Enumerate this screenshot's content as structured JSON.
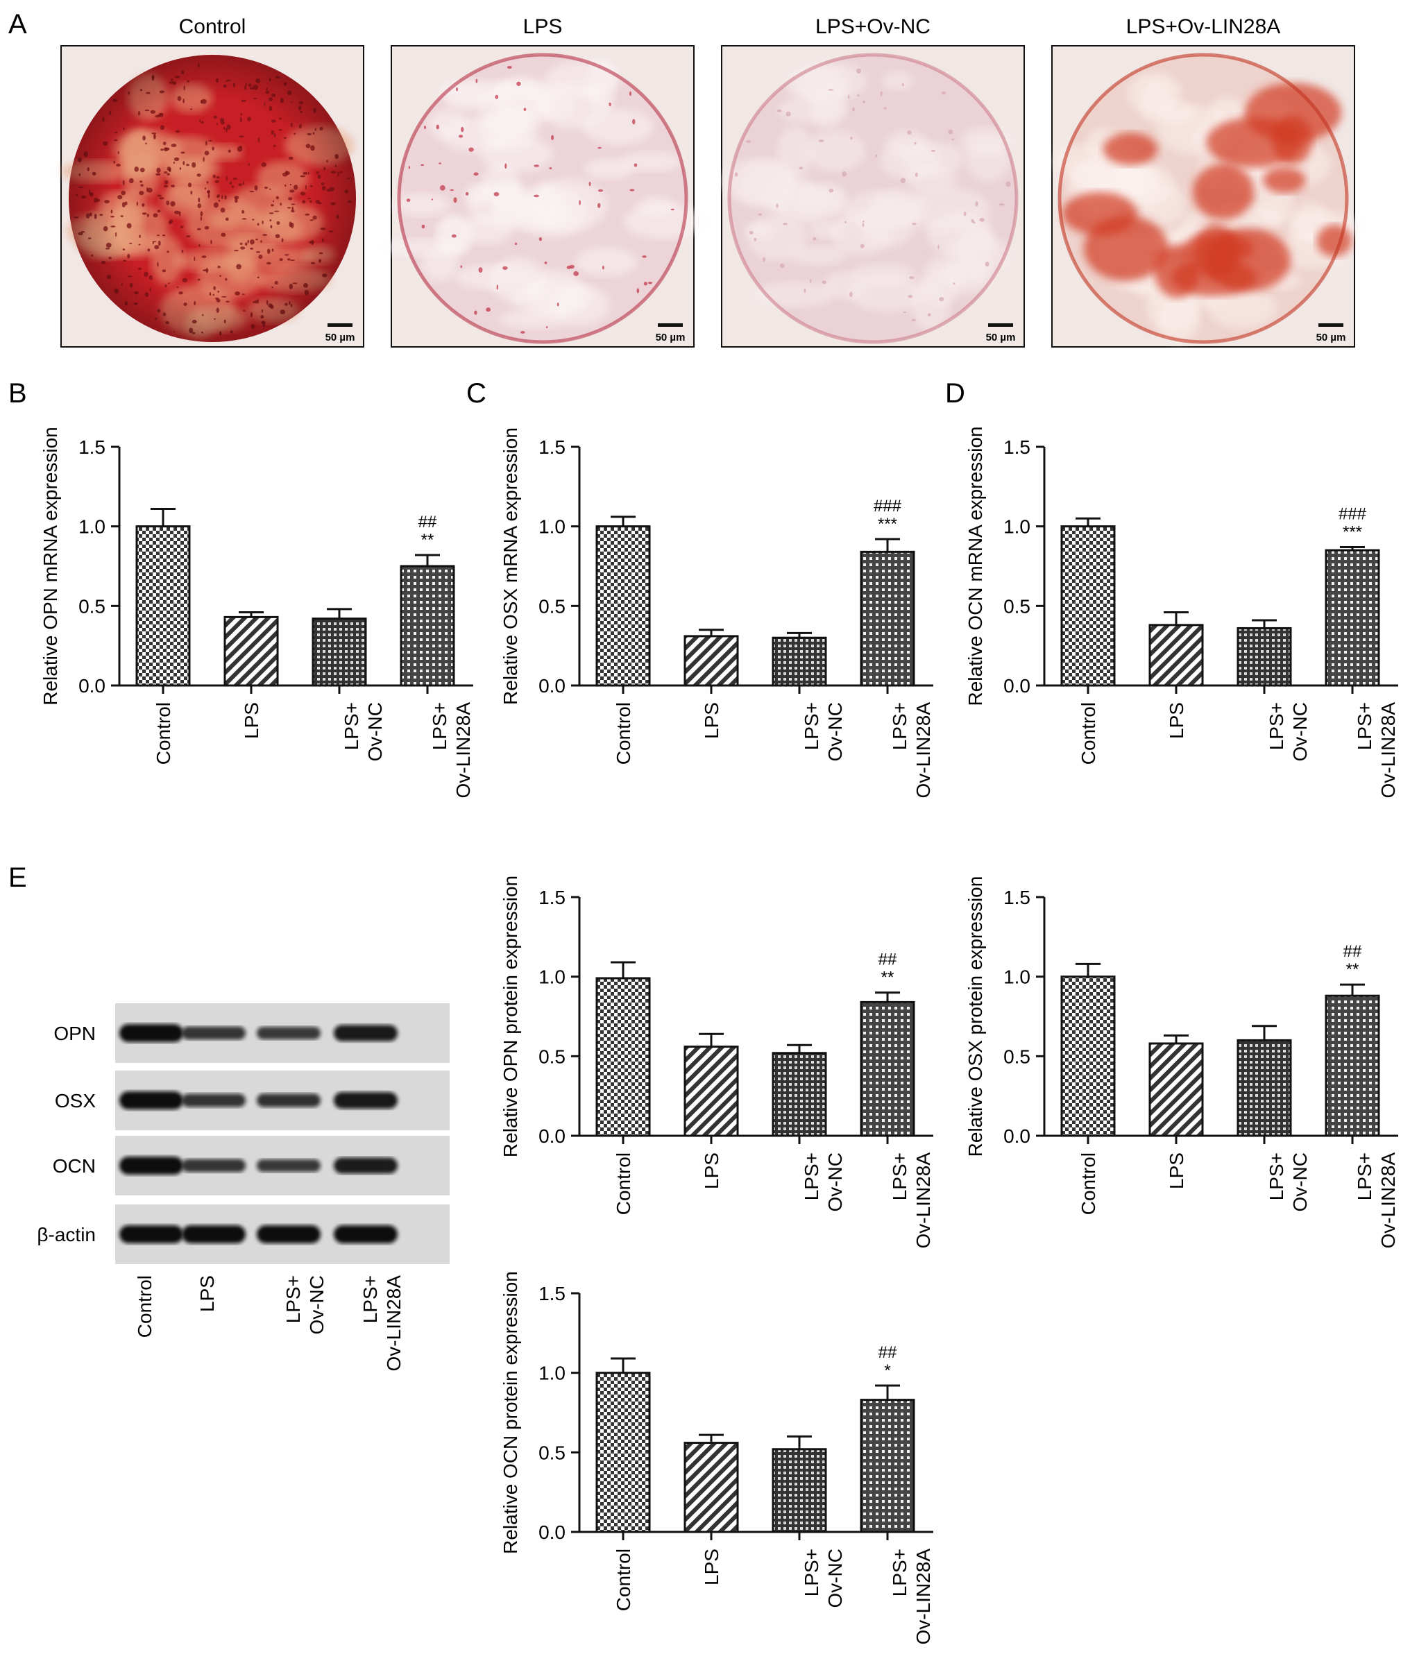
{
  "panel_letters": [
    "A",
    "B",
    "C",
    "D",
    "E"
  ],
  "staining": {
    "images": [
      {
        "title": "Control",
        "scale": "50 µm",
        "palette": [
          "#c71f25",
          "#e8a07c",
          "#7a1114"
        ]
      },
      {
        "title": "LPS",
        "scale": "50 µm",
        "palette": [
          "#ecd4d8",
          "#fbf4f4",
          "#c23a4c"
        ]
      },
      {
        "title": "LPS+Ov-NC",
        "scale": "50 µm",
        "palette": [
          "#ead2d6",
          "#f8eeee",
          "#d7aab3"
        ]
      },
      {
        "title": "LPS+Ov-LIN28A",
        "scale": "50 µm",
        "palette": [
          "#eed2cc",
          "#fbf1ee",
          "#d23a22"
        ]
      }
    ]
  },
  "western_blot": {
    "bands": [
      "OPN",
      "OSX",
      "OCN",
      "β-actin"
    ],
    "lanes": [
      "Control",
      "LPS",
      "LPS+\nOv-NC",
      "LPS+\nOv-LIN28A"
    ],
    "intensity": [
      [
        1.0,
        0.56,
        0.52,
        0.85
      ],
      [
        1.0,
        0.58,
        0.6,
        0.88
      ],
      [
        1.0,
        0.56,
        0.52,
        0.83
      ],
      [
        1.0,
        1.0,
        1.0,
        1.0
      ]
    ]
  },
  "chart_data": [
    {
      "id": "B",
      "type": "bar",
      "ylabel": "Relative OPN mRNA expression",
      "ylim": [
        0,
        1.5
      ],
      "yticks": [
        "0.0",
        "0.5",
        "1.0",
        "1.5"
      ],
      "categories": [
        "Control",
        "LPS",
        "LPS+\nOv-NC",
        "LPS+\nOv-LIN28A"
      ],
      "values": [
        1.0,
        0.43,
        0.42,
        0.75
      ],
      "errors": [
        0.11,
        0.03,
        0.06,
        0.07
      ],
      "annotations": [
        "",
        "",
        "",
        "##\n**"
      ],
      "patterns": [
        "check",
        "diag",
        "grid",
        "dots"
      ]
    },
    {
      "id": "C",
      "type": "bar",
      "ylabel": "Relative OSX mRNA expression",
      "ylim": [
        0,
        1.5
      ],
      "yticks": [
        "0.0",
        "0.5",
        "1.0",
        "1.5"
      ],
      "categories": [
        "Control",
        "LPS",
        "LPS+\nOv-NC",
        "LPS+\nOv-LIN28A"
      ],
      "values": [
        1.0,
        0.31,
        0.3,
        0.84
      ],
      "errors": [
        0.06,
        0.04,
        0.03,
        0.08
      ],
      "annotations": [
        "",
        "",
        "",
        "###\n***"
      ],
      "patterns": [
        "check",
        "diag",
        "grid",
        "dots"
      ]
    },
    {
      "id": "D",
      "type": "bar",
      "ylabel": "Relative OCN mRNA expression",
      "ylim": [
        0,
        1.5
      ],
      "yticks": [
        "0.0",
        "0.5",
        "1.0",
        "1.5"
      ],
      "categories": [
        "Control",
        "LPS",
        "LPS+\nOv-NC",
        "LPS+\nOv-LIN28A"
      ],
      "values": [
        1.0,
        0.38,
        0.36,
        0.85
      ],
      "errors": [
        0.05,
        0.08,
        0.05,
        0.02
      ],
      "annotations": [
        "",
        "",
        "",
        "###\n***"
      ],
      "patterns": [
        "check",
        "diag",
        "grid",
        "dots"
      ]
    },
    {
      "id": "E1",
      "type": "bar",
      "ylabel": "Relative OPN protein expression",
      "ylim": [
        0,
        1.5
      ],
      "yticks": [
        "0.0",
        "0.5",
        "1.0",
        "1.5"
      ],
      "categories": [
        "Control",
        "LPS",
        "LPS+\nOv-NC",
        "LPS+\nOv-LIN28A"
      ],
      "values": [
        0.99,
        0.56,
        0.52,
        0.84
      ],
      "errors": [
        0.1,
        0.08,
        0.05,
        0.06
      ],
      "annotations": [
        "",
        "",
        "",
        "##\n**"
      ],
      "patterns": [
        "check",
        "diag",
        "grid",
        "dots"
      ]
    },
    {
      "id": "E2",
      "type": "bar",
      "ylabel": "Relative OSX protein expression",
      "ylim": [
        0,
        1.5
      ],
      "yticks": [
        "0.0",
        "0.5",
        "1.0",
        "1.5"
      ],
      "categories": [
        "Control",
        "LPS",
        "LPS+\nOv-NC",
        "LPS+\nOv-LIN28A"
      ],
      "values": [
        1.0,
        0.58,
        0.6,
        0.88
      ],
      "errors": [
        0.08,
        0.05,
        0.09,
        0.07
      ],
      "annotations": [
        "",
        "",
        "",
        "##\n**"
      ],
      "patterns": [
        "check",
        "diag",
        "grid",
        "dots"
      ]
    },
    {
      "id": "E3",
      "type": "bar",
      "ylabel": "Relative OCN protein expression",
      "ylim": [
        0,
        1.5
      ],
      "yticks": [
        "0.0",
        "0.5",
        "1.0",
        "1.5"
      ],
      "categories": [
        "Control",
        "LPS",
        "LPS+\nOv-NC",
        "LPS+\nOv-LIN28A"
      ],
      "values": [
        1.0,
        0.56,
        0.52,
        0.83
      ],
      "errors": [
        0.09,
        0.05,
        0.08,
        0.09
      ],
      "annotations": [
        "",
        "",
        "",
        "##\n*"
      ],
      "patterns": [
        "check",
        "diag",
        "grid",
        "dots"
      ]
    }
  ]
}
